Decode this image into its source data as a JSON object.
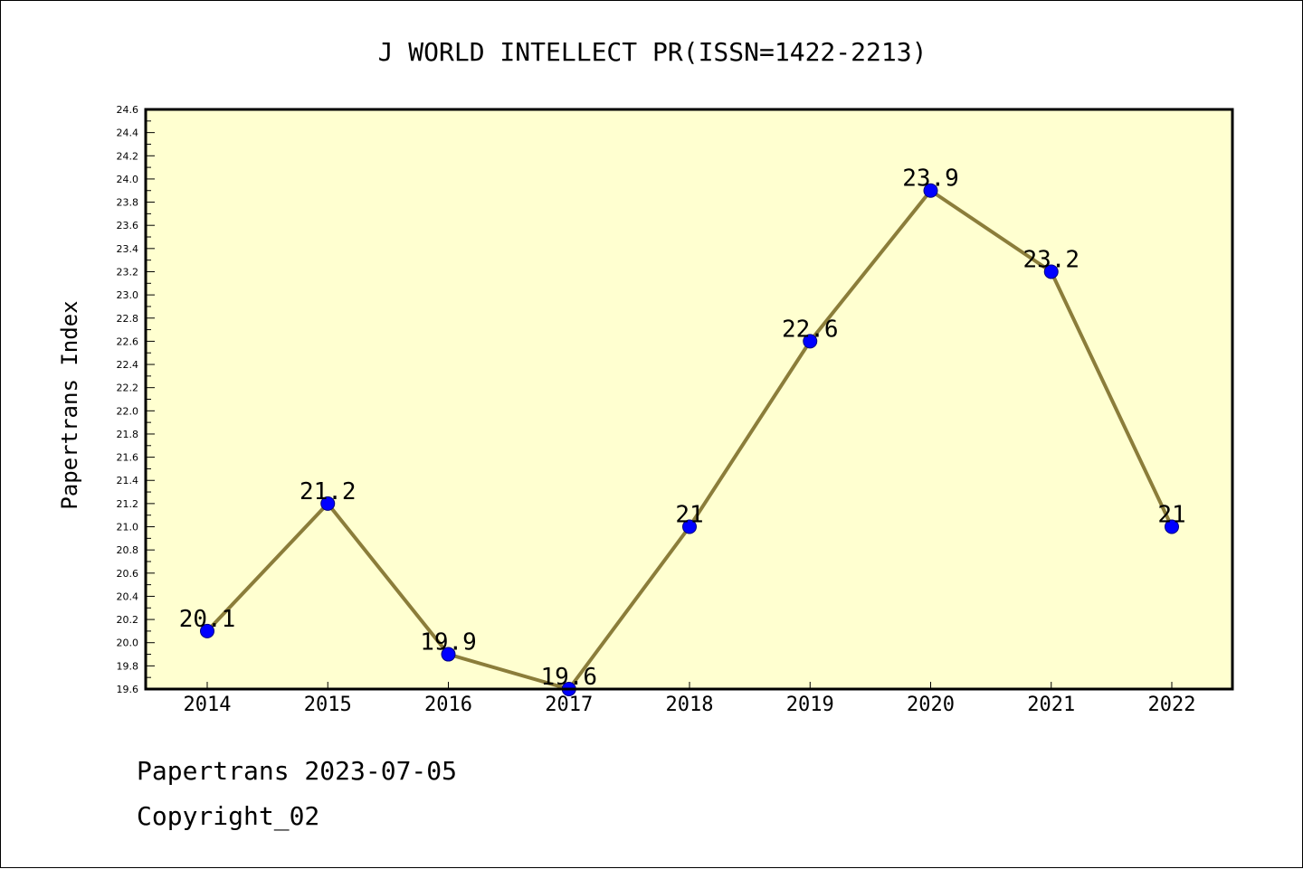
{
  "chart_data": {
    "type": "line",
    "title": "J WORLD INTELLECT PR(ISSN=1422-2213)",
    "xlabel": "",
    "ylabel": "Papertrans Index",
    "categories": [
      "2014",
      "2015",
      "2016",
      "2017",
      "2018",
      "2019",
      "2020",
      "2021",
      "2022"
    ],
    "series": [
      {
        "values": [
          20.1,
          21.2,
          19.9,
          19.6,
          21,
          22.6,
          23.9,
          23.2,
          21
        ]
      }
    ],
    "data_labels": [
      "20.1",
      "21.2",
      "19.9",
      "19.6",
      "21",
      "22.6",
      "23.9",
      "23.2",
      "21"
    ],
    "ylim": [
      19.6,
      24.6
    ],
    "yticks": [
      "19.6",
      "19.8",
      "20.0",
      "20.2",
      "20.4",
      "20.6",
      "20.8",
      "21.0",
      "21.2",
      "21.4",
      "21.6",
      "21.8",
      "22.0",
      "22.2",
      "22.4",
      "22.6",
      "22.8",
      "23.0",
      "23.2",
      "23.4",
      "23.6",
      "23.8",
      "24.0",
      "24.2",
      "24.4",
      "24.6"
    ],
    "grid": false,
    "colors": {
      "plot_background": "#ffffd0",
      "line": "#8b7d3a",
      "marker_fill": "#0000ff",
      "marker_stroke": "#000080"
    }
  },
  "footer": {
    "line1": "Papertrans 2023-07-05",
    "line2": "Copyright_02"
  }
}
